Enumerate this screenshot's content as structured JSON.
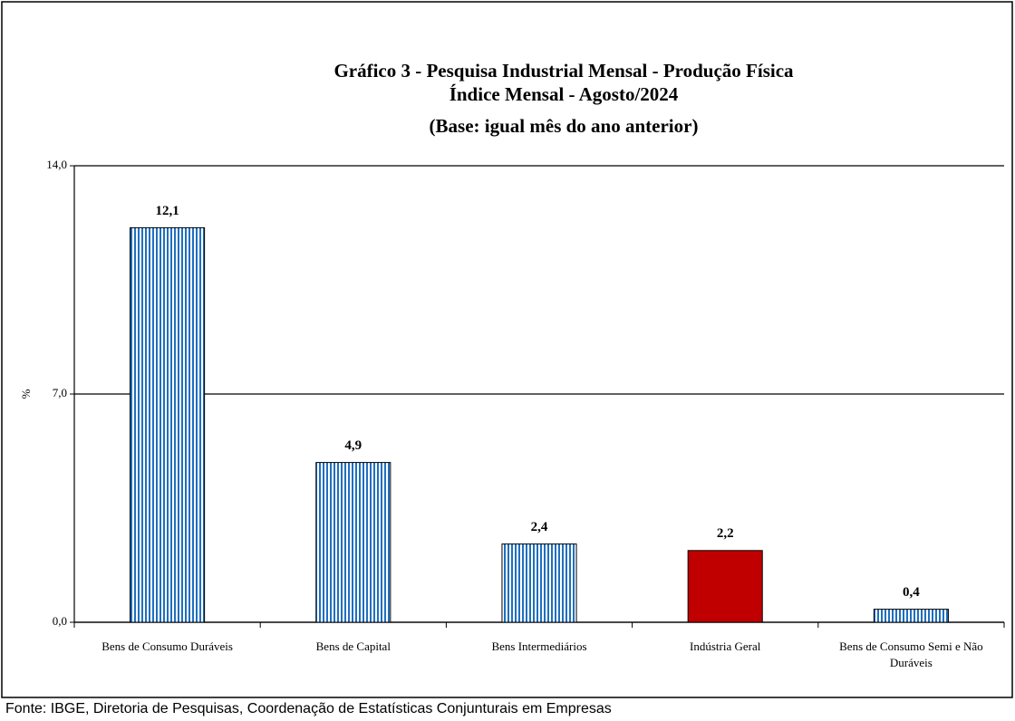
{
  "chart_data": {
    "type": "bar",
    "title": [
      "Gráfico 3 - Pesquisa Industrial Mensal - Produção Física",
      "Índice Mensal - Agosto/2024",
      "(Base: igual mês do ano anterior)"
    ],
    "y_label": "%",
    "categories": [
      "Bens de Consumo Duráveis",
      "Bens de Capital",
      "Bens Intermediários",
      "Indústria Geral",
      "Bens de Consumo Semi e Não Duráveis"
    ],
    "values": [
      12.1,
      4.9,
      2.4,
      2.2,
      0.4
    ],
    "value_labels": [
      "12,1",
      "4,9",
      "2,4",
      "2,2",
      "0,4"
    ],
    "colors": [
      "#1f6fbf",
      "#1f6fbf",
      "#1f6fbf",
      "#c00000",
      "#1f6fbf"
    ],
    "hatched": [
      true,
      true,
      true,
      false,
      true
    ],
    "ylim": [
      0,
      14
    ],
    "yticks": [
      {
        "value": 0,
        "label": "0,0"
      },
      {
        "value": 7,
        "label": "7,0"
      },
      {
        "value": 14,
        "label": "14,0"
      }
    ],
    "grid": true,
    "source": "Fonte: IBGE, Diretoria de Pesquisas, Coordenação de Estatísticas Conjunturais em Empresas"
  }
}
